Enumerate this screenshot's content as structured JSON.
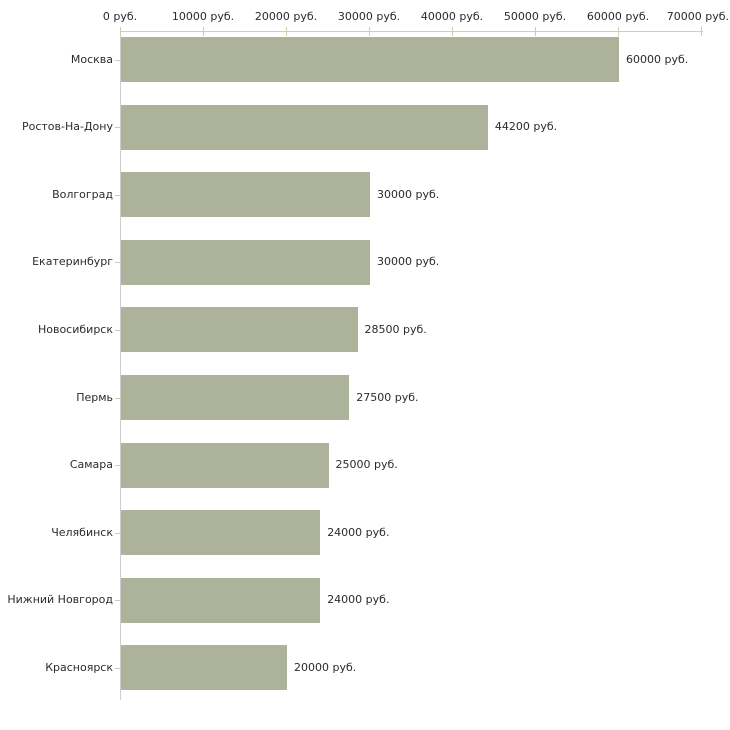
{
  "chart_data": {
    "type": "bar",
    "orientation": "horizontal",
    "unit": "руб.",
    "categories": [
      "Москва",
      "Ростов-На-Дону",
      "Волгоград",
      "Екатеринбург",
      "Новосибирск",
      "Пермь",
      "Самара",
      "Челябинск",
      "Нижний Новгород",
      "Красноярск"
    ],
    "values": [
      60000,
      44200,
      30000,
      30000,
      28500,
      27500,
      25000,
      24000,
      24000,
      20000
    ],
    "value_labels": [
      "60000 руб.",
      "44200 руб.",
      "30000 руб.",
      "30000 руб.",
      "28500 руб.",
      "27500 руб.",
      "25000 руб.",
      "24000 руб.",
      "24000 руб.",
      "20000 руб."
    ],
    "x_ticks": [
      0,
      10000,
      20000,
      30000,
      40000,
      50000,
      60000,
      70000
    ],
    "x_tick_labels": [
      "0 руб.",
      "10000 руб.",
      "20000 руб.",
      "30000 руб.",
      "40000 руб.",
      "50000 руб.",
      "60000 руб.",
      "70000 руб."
    ],
    "xlim": [
      0,
      70000
    ],
    "x_axis_position": "top",
    "grid": false,
    "legend": false,
    "title": "",
    "xlabel": "",
    "ylabel": "",
    "colors": {
      "bar_fill": "#adb39b",
      "axis_line": "#cdcdcd",
      "tick_mark": "#ccd0a5",
      "text": "#2b2b2b",
      "background": "#ffffff"
    }
  }
}
